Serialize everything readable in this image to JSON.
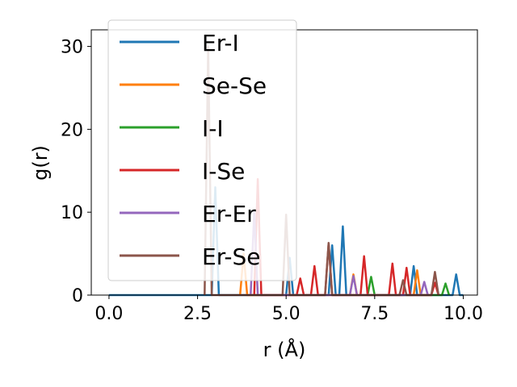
{
  "chart_data": {
    "type": "line",
    "xlabel": "r (Å)",
    "ylabel": "g(r)",
    "xlim": [
      -0.5,
      10.4
    ],
    "ylim": [
      0,
      32
    ],
    "xticks": [
      0.0,
      2.5,
      5.0,
      7.5,
      10.0
    ],
    "xtick_labels": [
      "0.0",
      "2.5",
      "5.0",
      "7.5",
      "10.0"
    ],
    "yticks": [
      0,
      10,
      20,
      30
    ],
    "ytick_labels": [
      "0",
      "10",
      "20",
      "30"
    ],
    "grid": false,
    "legend_position": "top-left",
    "series": [
      {
        "name": "Er-I",
        "color": "#1f77b4",
        "x": [
          0,
          2.9,
          3.0,
          3.1,
          5.0,
          5.1,
          5.2,
          5.3,
          6.2,
          6.3,
          6.4,
          6.5,
          6.6,
          6.7,
          8.5,
          8.6,
          8.7,
          9.6,
          9.7,
          9.8,
          9.9,
          10.0
        ],
        "y": [
          0,
          0,
          13,
          0,
          0,
          4.5,
          0,
          0,
          0,
          6,
          0,
          0,
          8.3,
          0,
          0,
          3.5,
          0,
          0,
          0,
          2.5,
          0,
          0
        ]
      },
      {
        "name": "Se-Se",
        "color": "#ff7f0e",
        "x": [
          3.7,
          3.8,
          3.9,
          6.8,
          6.9,
          7.0,
          8.6,
          8.7,
          8.8
        ],
        "y": [
          0,
          5,
          0,
          0,
          2.5,
          0,
          0,
          3,
          0
        ]
      },
      {
        "name": "I-I",
        "color": "#2ca02c",
        "x": [
          7.3,
          7.4,
          7.5,
          9.4,
          9.5,
          9.6
        ],
        "y": [
          0,
          2.2,
          0,
          0,
          1.4,
          0
        ]
      },
      {
        "name": "I-Se",
        "color": "#d62728",
        "x": [
          4.1,
          4.2,
          4.3,
          5.3,
          5.4,
          5.5,
          5.7,
          5.8,
          5.9,
          6.1,
          6.2,
          6.3,
          7.1,
          7.2,
          7.3,
          7.9,
          8.0,
          8.1,
          8.3,
          8.4,
          8.5,
          9.1,
          9.2,
          9.3
        ],
        "y": [
          0,
          14,
          0,
          0,
          2,
          0,
          0,
          3.5,
          0,
          0,
          6.2,
          0,
          0,
          4.7,
          0,
          0,
          3.8,
          0,
          0,
          3.3,
          0,
          0,
          1.5,
          0
        ]
      },
      {
        "name": "Er-Er",
        "color": "#9467bd",
        "x": [
          4.0,
          4.1,
          4.2,
          6.8,
          6.9,
          7.0,
          8.8,
          8.9,
          9.0
        ],
        "y": [
          0,
          10,
          0,
          0,
          2.3,
          0,
          0,
          1.6,
          0
        ]
      },
      {
        "name": "Er-Se",
        "color": "#8c564b",
        "x": [
          2.7,
          2.8,
          2.9,
          4.9,
          5.0,
          5.1,
          6.1,
          6.2,
          6.3,
          8.2,
          8.3,
          8.4,
          9.1,
          9.2,
          9.3
        ],
        "y": [
          0,
          30,
          0,
          0,
          9.7,
          0,
          0,
          6.3,
          0,
          0,
          1.8,
          0,
          0,
          2.8,
          0
        ]
      }
    ]
  }
}
